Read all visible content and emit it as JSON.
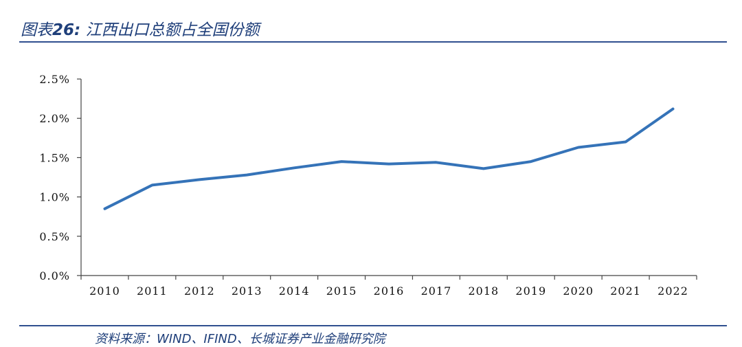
{
  "header": {
    "title_prefix": "图表",
    "title_number": "26:",
    "title_text": " 江西出口总额占全国份额"
  },
  "footer": {
    "source": "资料来源：WIND、IFIND、长城证券产业金融研究院"
  },
  "colors": {
    "line": "#3573b8",
    "title": "#1f3f7a",
    "rule": "#2f4f8f",
    "axis": "#444444"
  },
  "chart_data": {
    "type": "line",
    "title": "",
    "xlabel": "",
    "ylabel": "",
    "categories": [
      "2010",
      "2011",
      "2012",
      "2013",
      "2014",
      "2015",
      "2016",
      "2017",
      "2018",
      "2019",
      "2020",
      "2021",
      "2022"
    ],
    "series": [
      {
        "values": [
          0.85,
          1.15,
          1.22,
          1.28,
          1.37,
          1.45,
          1.42,
          1.44,
          1.36,
          1.45,
          1.63,
          1.7,
          2.12
        ]
      }
    ],
    "ylim": [
      0,
      2.5
    ],
    "yticks": [
      "0.0%",
      "0.5%",
      "1.0%",
      "1.5%",
      "2.0%",
      "2.5%"
    ],
    "grid": false,
    "legend": "none"
  }
}
